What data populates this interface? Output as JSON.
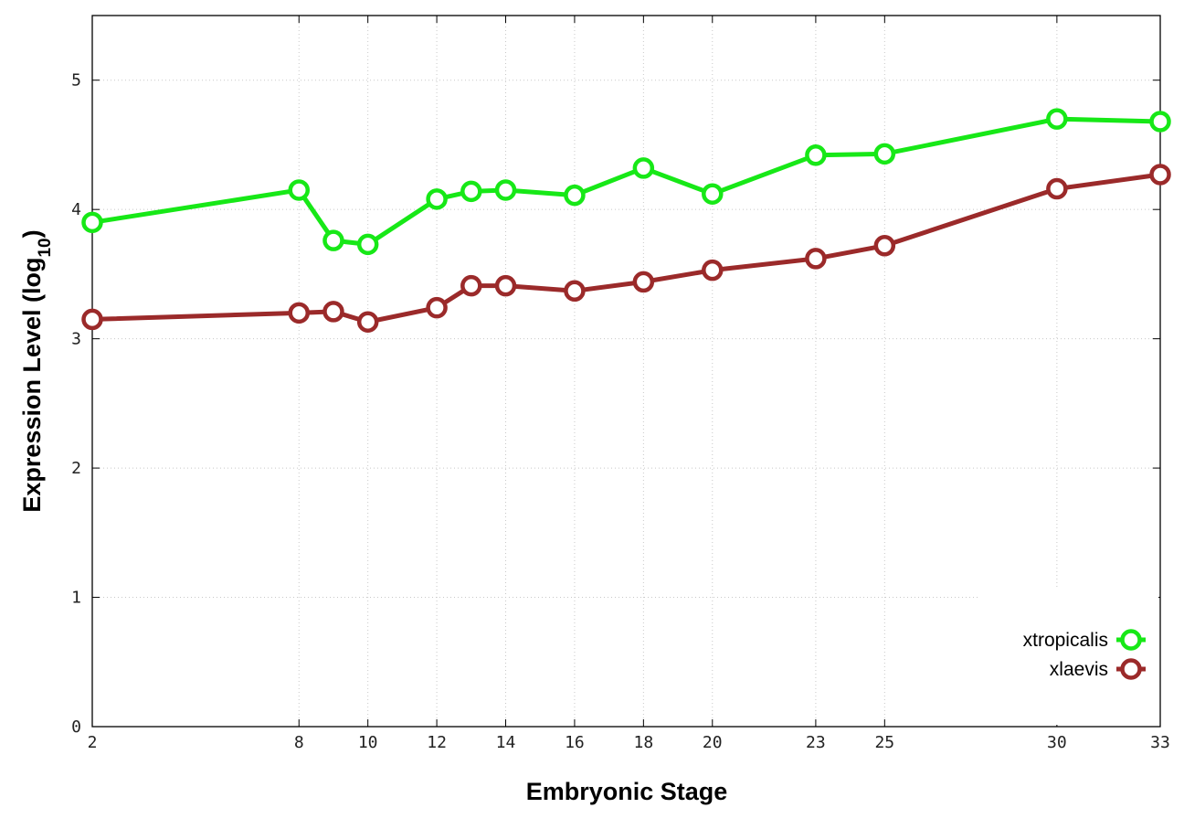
{
  "chart_data": {
    "type": "line",
    "xlabel": "Embryonic Stage",
    "ylabel_main": "Expression Level (log",
    "ylabel_sub": "10",
    "ylabel_close": ")",
    "x": [
      2,
      8,
      9,
      10,
      12,
      13,
      14,
      16,
      18,
      20,
      23,
      25,
      30,
      33
    ],
    "x_ticks": [
      2,
      8,
      10,
      12,
      14,
      16,
      18,
      20,
      23,
      25,
      30,
      33
    ],
    "y_ticks": [
      0,
      1,
      2,
      3,
      4,
      5
    ],
    "xlim": [
      2,
      33
    ],
    "ylim": [
      0,
      5.5
    ],
    "grid": true,
    "legend_position": "bottom-right",
    "series": [
      {
        "name": "xtropicalis",
        "color": "#17e817",
        "values": [
          3.9,
          4.15,
          3.76,
          3.73,
          4.08,
          4.14,
          4.15,
          4.11,
          4.32,
          4.12,
          4.42,
          4.43,
          4.7,
          4.68
        ]
      },
      {
        "name": "xlaevis",
        "color": "#9b2a2a",
        "values": [
          3.15,
          3.2,
          3.21,
          3.13,
          3.24,
          3.41,
          3.41,
          3.37,
          3.44,
          3.53,
          3.62,
          3.72,
          4.16,
          4.27
        ]
      }
    ]
  }
}
